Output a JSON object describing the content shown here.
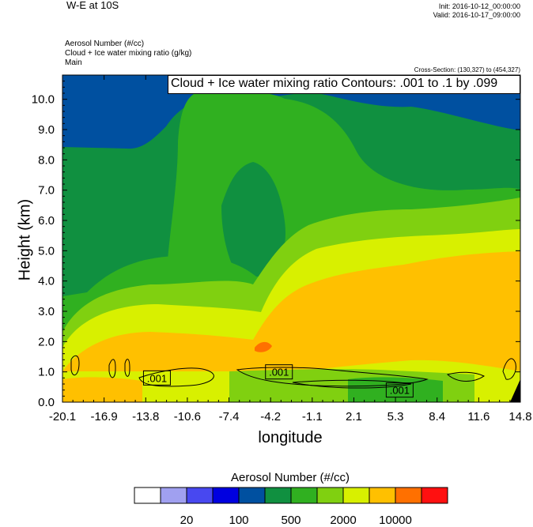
{
  "header": {
    "title": "W-E at 10S",
    "init": "Init: 2016-10-12_00:00:00",
    "valid": "Valid: 2016-10-17_09:00:00",
    "line1": "Aerosol Number   (#/cc)",
    "line2": "Cloud + Ice water mixing ratio   (g/kg)",
    "line3": "Main",
    "cross_section": "Cross-Section: (130,327) to (454,327)"
  },
  "chart_data": {
    "type": "heatmap",
    "annotation": "Cloud + Ice water mixing ratio Contours: .001 to .1 by .099",
    "xlabel": "longitude",
    "ylabel": "Height (km)",
    "x_ticks": [
      "-20.1",
      "-16.9",
      "-13.8",
      "-10.6",
      "-7.4",
      "-4.2",
      "-1.1",
      "2.1",
      "5.3",
      "8.4",
      "11.6",
      "14.8"
    ],
    "y_ticks": [
      "0.0",
      "1.0",
      "2.0",
      "3.0",
      "4.0",
      "5.0",
      "6.0",
      "7.0",
      "8.0",
      "9.0",
      "10.0"
    ],
    "x_range": [
      -20.1,
      14.8
    ],
    "y_range": [
      0,
      10.8
    ],
    "contour_labels": [
      {
        "text": ".001",
        "lon": -12.9,
        "h": 0.8
      },
      {
        "text": ".001",
        "lon": -3.6,
        "h": 1.0
      },
      {
        "text": ".001",
        "lon": 5.6,
        "h": 0.4
      }
    ],
    "colorbar": {
      "title": "Aerosol Number  (#/cc)",
      "labels": [
        "20",
        "100",
        "500",
        "2000",
        "10000"
      ],
      "colors": [
        "#ffffff",
        "#a0a0f0",
        "#4848f0",
        "#0000e0",
        "#0050a0",
        "#109040",
        "#30b020",
        "#80d010",
        "#d8f000",
        "#ffc000",
        "#ff7000",
        "#ff1010"
      ]
    }
  }
}
